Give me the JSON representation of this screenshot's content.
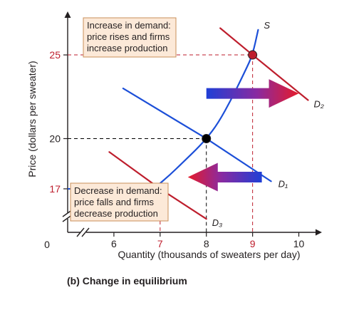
{
  "chart_data": {
    "type": "line",
    "caption": "(b) Change in equilibrium",
    "xlabel": "Quantity (thousands of sweaters per day)",
    "ylabel": "Price (dollars per sweater)",
    "xlim": [
      5,
      10.5
    ],
    "ylim": [
      14.4,
      27.6
    ],
    "x_axis_break": true,
    "y_axis_break": true,
    "origin_label": "0",
    "x_ticks": [
      {
        "value": 6,
        "label": "6",
        "color": "#231f20"
      },
      {
        "value": 7,
        "label": "7",
        "color": "#be1e2d"
      },
      {
        "value": 8,
        "label": "8",
        "color": "#231f20"
      },
      {
        "value": 9,
        "label": "9",
        "color": "#be1e2d"
      },
      {
        "value": 10,
        "label": "10",
        "color": "#231f20"
      }
    ],
    "y_ticks": [
      {
        "value": 17,
        "label": "17",
        "color": "#be1e2d"
      },
      {
        "value": 20,
        "label": "20",
        "color": "#231f20"
      },
      {
        "value": 25,
        "label": "25",
        "color": "#be1e2d"
      }
    ],
    "series": [
      {
        "name": "S",
        "color": "#1c4fd8",
        "x": [
          6.9,
          7.2,
          7.5,
          7.8,
          8.0,
          8.25,
          8.55,
          8.85,
          9.0,
          9.12
        ],
        "y": [
          17.1,
          17.8,
          18.6,
          19.4,
          20.0,
          20.9,
          22.4,
          24.1,
          25.0,
          26.5
        ]
      },
      {
        "name": "D₁",
        "color": "#1c4fd8",
        "x": [
          6.2,
          8.0,
          9.4
        ],
        "y": [
          23.0,
          20.0,
          17.45
        ]
      },
      {
        "name": "D₂",
        "color": "#be1e2d",
        "x": [
          8.3,
          9.0,
          10.2
        ],
        "y": [
          26.6,
          25.0,
          22.3
        ]
      },
      {
        "name": "D₃",
        "color": "#be1e2d",
        "x": [
          5.9,
          7.0,
          8.0
        ],
        "y": [
          19.2,
          17.0,
          15.2
        ]
      }
    ],
    "equilibria": [
      {
        "x": 8,
        "y": 20,
        "color": "#000000",
        "dashed": true
      },
      {
        "x": 9,
        "y": 25,
        "color": "#be1e2d",
        "dashed": true
      },
      {
        "x": 7,
        "y": 17,
        "color": "#be1e2d",
        "dashed": false
      }
    ],
    "shifts": [
      {
        "direction": "right",
        "from": [
          8.0,
          22.7
        ],
        "to": [
          10.0,
          22.7
        ]
      },
      {
        "direction": "left",
        "from": [
          9.2,
          17.7
        ],
        "to": [
          7.6,
          17.7
        ]
      }
    ],
    "annotations": [
      {
        "lines": [
          "Increase in demand:",
          "price rises and firms",
          "increase production"
        ]
      },
      {
        "lines": [
          "Decrease in demand:",
          "price falls and firms",
          "decrease production"
        ]
      }
    ],
    "colors": {
      "axis": "#231f20",
      "note_fill": "#fce9d8",
      "note_border": "#c98f5a"
    }
  }
}
